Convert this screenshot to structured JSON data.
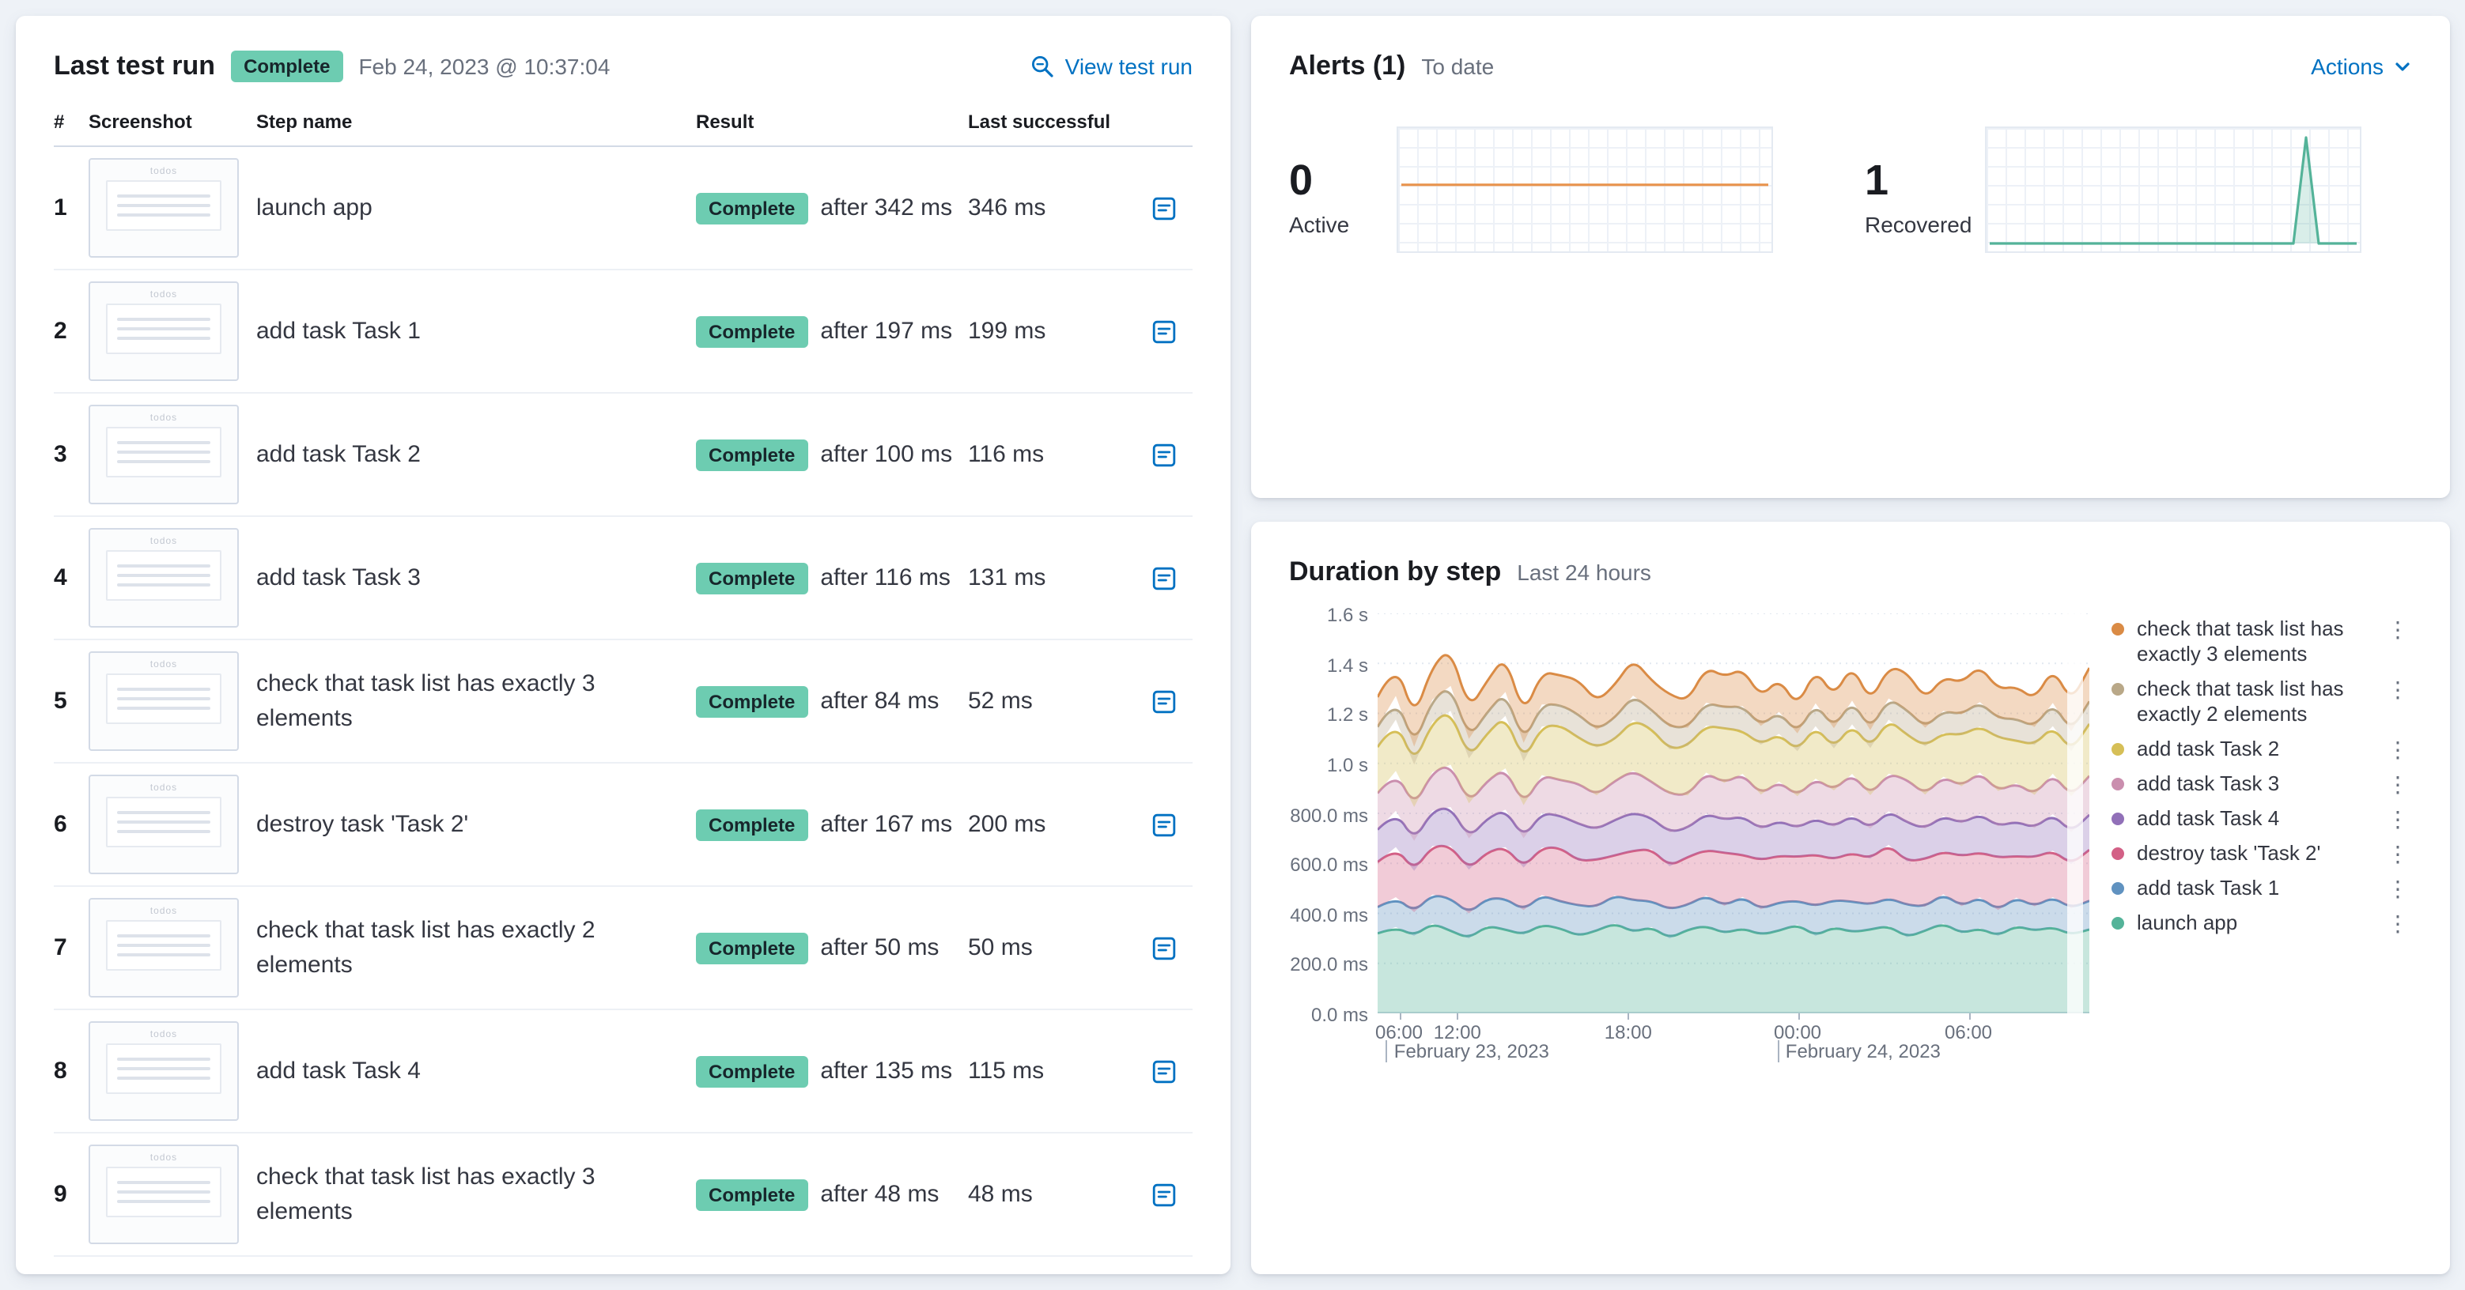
{
  "colors": {
    "link": "#0071c2",
    "badge_bg": "#6dccb1",
    "active_spark": "#e8934c",
    "recovered_spark": "#54b399"
  },
  "icons": {
    "inspect": "magnifier",
    "step_detail": "trace-lines",
    "chevron_down": "⌄",
    "kebab": "⋮"
  },
  "last_test_run": {
    "title": "Last test run",
    "status_badge": "Complete",
    "timestamp": "Feb 24, 2023 @ 10:37:04",
    "view_link": "View test run",
    "columns": {
      "num": "#",
      "screenshot": "Screenshot",
      "step": "Step name",
      "result": "Result",
      "last_successful": "Last successful"
    },
    "thumbnail_label": "todos",
    "steps": [
      {
        "num": "1",
        "name": "launch app",
        "badge": "Complete",
        "after": "after 342 ms",
        "last": "346 ms"
      },
      {
        "num": "2",
        "name": "add task Task 1",
        "badge": "Complete",
        "after": "after 197 ms",
        "last": "199 ms"
      },
      {
        "num": "3",
        "name": "add task Task 2",
        "badge": "Complete",
        "after": "after 100 ms",
        "last": "116 ms"
      },
      {
        "num": "4",
        "name": "add task Task 3",
        "badge": "Complete",
        "after": "after 116 ms",
        "last": "131 ms"
      },
      {
        "num": "5",
        "name": "check that task list has exactly 3 elements",
        "badge": "Complete",
        "after": "after 84 ms",
        "last": "52 ms"
      },
      {
        "num": "6",
        "name": "destroy task 'Task 2'",
        "badge": "Complete",
        "after": "after 167 ms",
        "last": "200 ms"
      },
      {
        "num": "7",
        "name": "check that task list has exactly 2 elements",
        "badge": "Complete",
        "after": "after 50 ms",
        "last": "50 ms"
      },
      {
        "num": "8",
        "name": "add task Task 4",
        "badge": "Complete",
        "after": "after 135 ms",
        "last": "115 ms"
      },
      {
        "num": "9",
        "name": "check that task list has exactly 3 elements",
        "badge": "Complete",
        "after": "after 48 ms",
        "last": "48 ms"
      }
    ]
  },
  "alerts": {
    "title": "Alerts (1)",
    "subtitle": "To date",
    "actions_label": "Actions",
    "stats": [
      {
        "value": "0",
        "label": "Active"
      },
      {
        "value": "1",
        "label": "Recovered"
      }
    ]
  },
  "duration": {
    "title": "Duration by step",
    "subtitle": "Last 24 hours"
  },
  "chart_data": [
    {
      "type": "line",
      "name": "active-alerts-sparkline",
      "color": "#e8934c",
      "fill": false,
      "values": [
        0,
        0,
        0,
        0,
        0,
        0,
        0,
        0,
        0,
        0,
        0,
        0,
        0,
        0,
        0,
        0,
        0,
        0,
        0,
        0,
        0,
        0,
        0,
        0,
        0,
        0,
        0,
        0,
        0,
        0
      ]
    },
    {
      "type": "line",
      "name": "recovered-alerts-sparkline",
      "color": "#54b399",
      "fill": true,
      "values": [
        0,
        0,
        0,
        0,
        0,
        0,
        0,
        0,
        0,
        0,
        0,
        0,
        0,
        0,
        0,
        0,
        0,
        0,
        0,
        0,
        0,
        0,
        0,
        0,
        0,
        1,
        0,
        0,
        0,
        0
      ]
    },
    {
      "type": "area",
      "name": "duration-by-step",
      "stacked": true,
      "title": "Duration by step",
      "subtitle": "Last 24 hours",
      "unit": "ms",
      "ylim": [
        0,
        1600
      ],
      "y_ticks": [
        {
          "label": "1.6 s",
          "value": 1600
        },
        {
          "label": "1.4 s",
          "value": 1400
        },
        {
          "label": "1.2 s",
          "value": 1200
        },
        {
          "label": "1.0 s",
          "value": 1000
        },
        {
          "label": "800.0 ms",
          "value": 800
        },
        {
          "label": "600.0 ms",
          "value": 600
        },
        {
          "label": "400.0 ms",
          "value": 400
        },
        {
          "label": "200.0 ms",
          "value": 200
        },
        {
          "label": "0.0 ms",
          "value": 0
        }
      ],
      "x_ticks": [
        {
          "label": "06:00",
          "f": 0.03
        },
        {
          "label": "12:00",
          "f": 0.112
        },
        {
          "label": "18:00",
          "f": 0.352
        },
        {
          "label": "00:00",
          "f": 0.59
        },
        {
          "label": "06:00",
          "f": 0.83
        }
      ],
      "date_labels": [
        {
          "label": "February 23, 2023",
          "f": 0.012
        },
        {
          "label": "February 24, 2023",
          "f": 0.562
        }
      ],
      "series_bottom_to_top": [
        {
          "name": "launch app",
          "color": "#54b399",
          "values": [
            320,
            345,
            310,
            360,
            330,
            300,
            350,
            335,
            315,
            355,
            340,
            310,
            330,
            360,
            325,
            345,
            300,
            335,
            350,
            320,
            340,
            315,
            330,
            355,
            310,
            345,
            325,
            335,
            350,
            305,
            330,
            360,
            320,
            340,
            310,
            350,
            330,
            345,
            315,
            335
          ]
        },
        {
          "name": "add task Task 1",
          "color": "#6092c0",
          "values": [
            105,
            120,
            95,
            115,
            130,
            100,
            110,
            125,
            98,
            118,
            108,
            122,
            96,
            112,
            128,
            104,
            116,
            99,
            121,
            110,
            126,
            102,
            114,
            95,
            119,
            107,
            123,
            100,
            111,
            129,
            97,
            117,
            109,
            124,
            103,
            113,
            98,
            120,
            106,
            115
          ]
        },
        {
          "name": "destroy task 'Task 2'",
          "color": "#d36086",
          "values": [
            180,
            200,
            165,
            195,
            210,
            175,
            185,
            205,
            170,
            190,
            215,
            178,
            188,
            160,
            198,
            208,
            172,
            192,
            182,
            212,
            168,
            196,
            186,
            176,
            206,
            164,
            194,
            184,
            214,
            174,
            190,
            170,
            200,
            180,
            210,
            166,
            196,
            186,
            176,
            204
          ]
        },
        {
          "name": "add task Task 4",
          "color": "#9170b8",
          "values": [
            130,
            145,
            120,
            140,
            155,
            125,
            135,
            150,
            118,
            138,
            128,
            148,
            122,
            142,
            152,
            126,
            136,
            116,
            146,
            132,
            154,
            124,
            140,
            115,
            144,
            130,
            150,
            120,
            134,
            156,
            122,
            142,
            132,
            152,
            126,
            138,
            118,
            146,
            128,
            140
          ]
        },
        {
          "name": "add task Task 3",
          "color": "#ca8eae",
          "values": [
            145,
            160,
            135,
            155,
            170,
            140,
            150,
            165,
            132,
            152,
            142,
            162,
            136,
            156,
            168,
            144,
            154,
            130,
            164,
            148,
            170,
            138,
            158,
            128,
            160,
            146,
            166,
            134,
            150,
            172,
            136,
            158,
            148,
            168,
            140,
            154,
            132,
            162,
            144,
            156
          ]
        },
        {
          "name": "add task Task 2",
          "color": "#d6bf57",
          "values": [
            185,
            205,
            170,
            200,
            215,
            180,
            190,
            210,
            175,
            195,
            220,
            182,
            192,
            165,
            202,
            212,
            178,
            198,
            188,
            218,
            172,
            200,
            190,
            180,
            210,
            168,
            198,
            188,
            216,
            178,
            194,
            174,
            204,
            184,
            214,
            170,
            200,
            190,
            180,
            208
          ]
        },
        {
          "name": "check that task list has exactly 2 elements",
          "color": "#b9a888",
          "values": [
            80,
            95,
            72,
            90,
            100,
            78,
            85,
            96,
            74,
            88,
            82,
            94,
            70,
            86,
            98,
            76,
            90,
            73,
            92,
            84,
            99,
            75,
            88,
            71,
            91,
            81,
            95,
            72,
            85,
            100,
            74,
            89,
            83,
            97,
            77,
            87,
            72,
            93,
            79,
            90
          ]
        },
        {
          "name": "check that task list has exactly 3 elements",
          "color": "#da8b45",
          "values": [
            120,
            140,
            110,
            135,
            150,
            115,
            125,
            145,
            108,
            130,
            118,
            138,
            112,
            132,
            148,
            116,
            128,
            106,
            142,
            122,
            150,
            114,
            134,
            105,
            138,
            124,
            144,
            110,
            126,
            152,
            112,
            136,
            126,
            146,
            116,
            130,
            108,
            140,
            118,
            134
          ]
        }
      ]
    }
  ]
}
